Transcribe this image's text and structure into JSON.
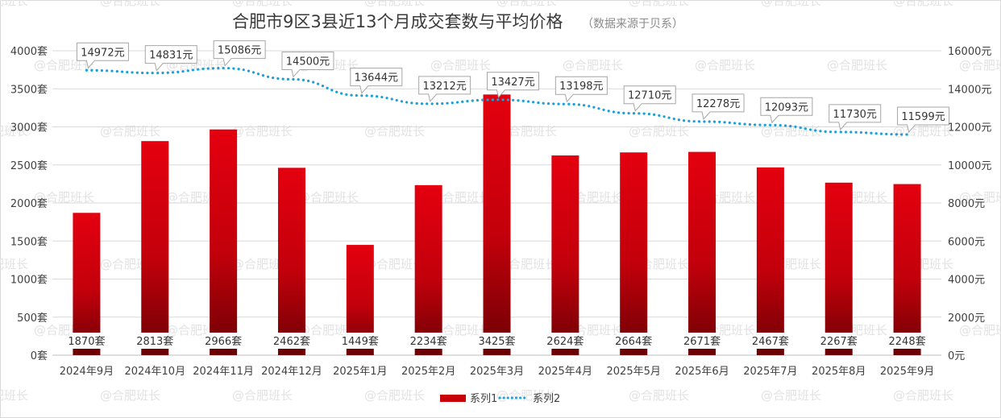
{
  "chart_data": {
    "type": "bar",
    "title": "合肥市9区3县近13个月成交套数与平均价格",
    "subtitle": "（数据来源于贝系）",
    "categories": [
      "2024年9月",
      "2024年10月",
      "2024年11月",
      "2024年12月",
      "2025年1月",
      "2025年2月",
      "2025年3月",
      "2025年4月",
      "2025年5月",
      "2025年6月",
      "2025年7月",
      "2025年8月",
      "2025年9月"
    ],
    "series": [
      {
        "name": "系列1",
        "type": "bar",
        "axis": "left",
        "color": "#c8000a",
        "values": [
          1870,
          2813,
          2966,
          2462,
          1449,
          2234,
          3425,
          2624,
          2664,
          2671,
          2467,
          2267,
          2248
        ],
        "labels": [
          "1870套",
          "2813套",
          "2966套",
          "2462套",
          "1449套",
          "2234套",
          "3425套",
          "2624套",
          "2664套",
          "2671套",
          "2467套",
          "2267套",
          "2248套"
        ]
      },
      {
        "name": "系列2",
        "type": "line",
        "style": "dotted",
        "axis": "right",
        "color": "#1aa1dc",
        "values": [
          14972,
          14831,
          15086,
          14500,
          13644,
          13212,
          13427,
          13198,
          12710,
          12278,
          12093,
          11730,
          11599
        ],
        "labels": [
          "14972元",
          "14831元",
          "15086元",
          "14500元",
          "13644元",
          "13212元",
          "13427元",
          "13198元",
          "12710元",
          "12278元",
          "12093元",
          "11730元",
          "11599元"
        ]
      }
    ],
    "y_left": {
      "range": [
        0,
        4000
      ],
      "ticks": [
        "0套",
        "500套",
        "1000套",
        "1500套",
        "2000套",
        "2500套",
        "3000套",
        "3500套",
        "4000套"
      ]
    },
    "y_right": {
      "range": [
        0,
        16000
      ],
      "ticks": [
        "0元",
        "2000元",
        "4000元",
        "6000元",
        "8000元",
        "10000元",
        "12000元",
        "14000元",
        "16000元"
      ]
    },
    "grid": true,
    "legend": {
      "position": "bottom",
      "items": [
        "系列1",
        "系列2"
      ]
    },
    "watermark": "@合肥班长"
  }
}
